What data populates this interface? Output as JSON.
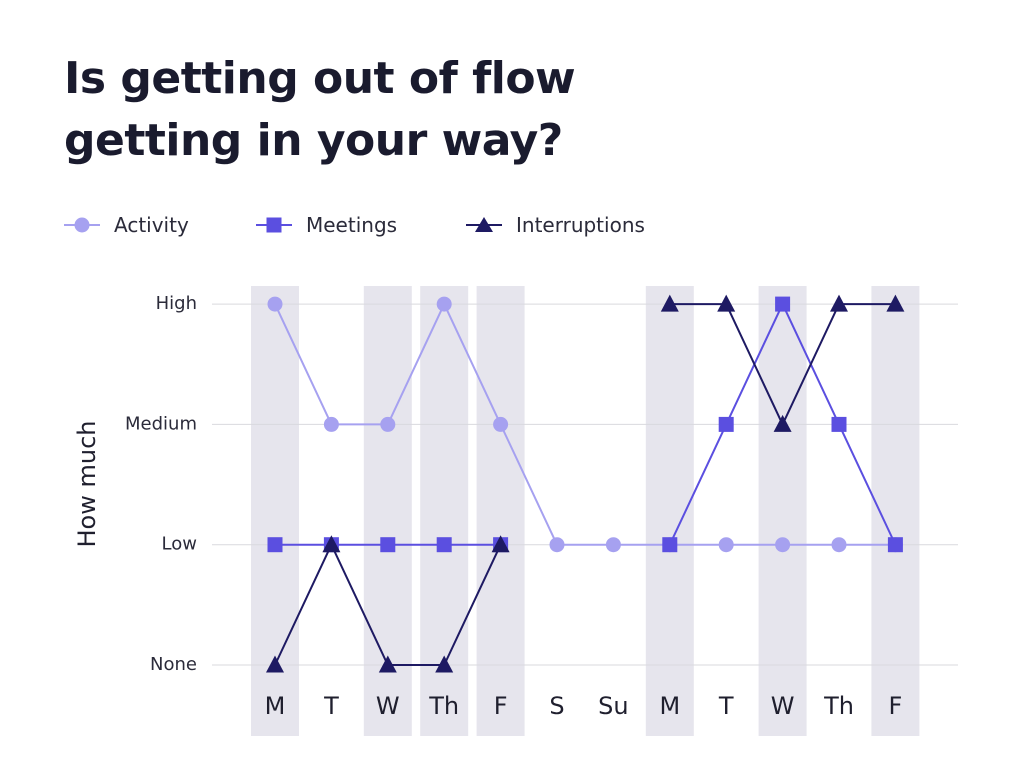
{
  "title_lines": [
    "Is getting out of flow",
    "getting in your way?"
  ],
  "colors": {
    "band": "#e6e5ed",
    "grid": "#d9d9de",
    "activity": "#a6a1f0",
    "meetings": "#5b4fe0",
    "interruptions": "#1e1a63"
  },
  "chart_data": {
    "type": "line",
    "title": "Is getting out of flow getting in your way?",
    "xlabel": "",
    "ylabel": "How much",
    "categories": [
      "M",
      "T",
      "W",
      "Th",
      "F",
      "S",
      "Su",
      "M",
      "T",
      "W",
      "Th",
      "F"
    ],
    "y_levels": [
      "None",
      "Low",
      "Medium",
      "High"
    ],
    "ylim": [
      0,
      3
    ],
    "shaded_categories": [
      0,
      2,
      3,
      4,
      7,
      9,
      11
    ],
    "legend_position": "top-left",
    "grid": "horizontal",
    "series": [
      {
        "name": "Activity",
        "marker": "circle",
        "color": "#a6a1f0",
        "values": [
          "High",
          "Medium",
          "Medium",
          "High",
          "Medium",
          "Low",
          "Low",
          "Low",
          "Low",
          "Low",
          "Low",
          "Low"
        ]
      },
      {
        "name": "Meetings",
        "marker": "square",
        "color": "#5b4fe0",
        "values": [
          "Low",
          "Low",
          "Low",
          "Low",
          "Low",
          null,
          null,
          "Low",
          "Medium",
          "High",
          "Medium",
          "Low"
        ]
      },
      {
        "name": "Interruptions",
        "marker": "triangle",
        "color": "#1e1a63",
        "values": [
          "None",
          "Low",
          "None",
          "None",
          "Low",
          null,
          null,
          "High",
          "High",
          "Medium",
          "High",
          "High"
        ]
      }
    ]
  }
}
